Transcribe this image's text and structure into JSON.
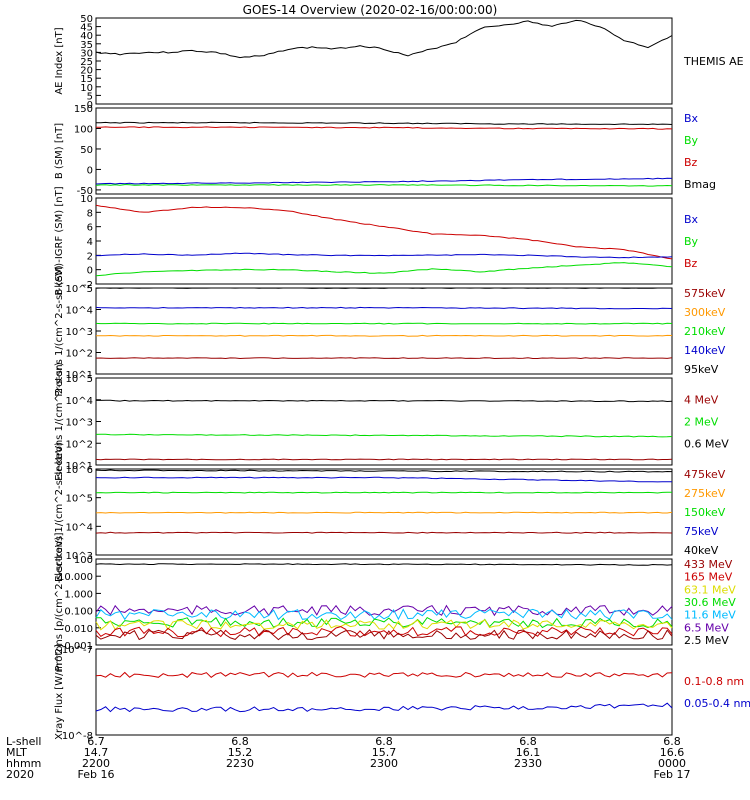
{
  "title": "GOES-14 Overview (2020-02-16/00:00:00)",
  "colors": {
    "black": "#000000",
    "blue": "#0000cc",
    "green": "#00dd00",
    "red": "#cc0000",
    "orange": "#ff9900",
    "cyan": "#00bbff",
    "purple": "#6600aa",
    "yellow": "#dddd00",
    "darkred": "#990000"
  },
  "chart_data": [
    {
      "type": "line",
      "ylabel": "AE Index [nT]",
      "ylim": [
        0,
        50
      ],
      "yticks": [
        "0",
        "5",
        "10",
        "15",
        "20",
        "25",
        "30",
        "35",
        "40",
        "45",
        "50"
      ],
      "x": [
        0,
        5,
        10,
        15,
        20,
        25,
        30,
        35,
        40,
        45,
        50,
        55,
        60,
        65,
        70,
        75,
        80,
        85,
        90,
        95,
        100,
        105,
        110,
        115,
        120
      ],
      "series": [
        {
          "name": "THEMIS AE",
          "color": "black",
          "values": [
            30,
            29,
            30,
            30,
            31,
            30,
            27,
            28,
            32,
            33,
            32,
            34,
            32,
            28,
            32,
            36,
            44,
            46,
            48,
            45,
            49,
            45,
            37,
            33,
            40
          ]
        }
      ],
      "legend": [
        {
          "text": "THEMIS AE",
          "color": "black"
        }
      ]
    },
    {
      "type": "line",
      "ylabel": "B (SM) [nT]",
      "ylim": [
        -60,
        150
      ],
      "yticks": [
        "150",
        "100",
        "50",
        "0",
        "-50"
      ],
      "x": [
        0,
        30,
        60,
        90,
        120
      ],
      "series": [
        {
          "name": "Bmag",
          "color": "black",
          "values": [
            114,
            114,
            113,
            111,
            110
          ]
        },
        {
          "name": "Bz",
          "color": "red",
          "values": [
            103,
            103,
            102,
            100,
            99
          ]
        },
        {
          "name": "Bx",
          "color": "blue",
          "values": [
            -35,
            -33,
            -30,
            -25,
            -22
          ]
        },
        {
          "name": "By",
          "color": "green",
          "values": [
            -38,
            -38,
            -38,
            -39,
            -40
          ]
        }
      ],
      "legend": [
        {
          "text": "Bx",
          "color": "blue"
        },
        {
          "text": "By",
          "color": "green"
        },
        {
          "text": "Bz",
          "color": "red"
        },
        {
          "text": "Bmag",
          "color": "black"
        }
      ]
    },
    {
      "type": "line",
      "ylabel": "B (SM)-IGRF (SM) [nT]",
      "ylim": [
        -2,
        10
      ],
      "yticks": [
        "10",
        "8",
        "6",
        "4",
        "2",
        "0",
        "-2"
      ],
      "x": [
        0,
        10,
        20,
        30,
        40,
        50,
        60,
        70,
        80,
        90,
        100,
        110,
        120
      ],
      "series": [
        {
          "name": "Bz",
          "color": "red",
          "values": [
            9,
            8,
            8.7,
            8.7,
            8.2,
            7,
            6,
            5,
            4.8,
            4.2,
            3.2,
            2.8,
            1.5
          ]
        },
        {
          "name": "Bx",
          "color": "blue",
          "values": [
            2,
            2.2,
            2,
            2.3,
            2.1,
            2,
            2,
            2,
            2.1,
            2,
            1.8,
            1.7,
            1.8
          ]
        },
        {
          "name": "By",
          "color": "green",
          "values": [
            -0.8,
            -0.3,
            -0.1,
            0,
            0,
            -0.3,
            -0.5,
            0.1,
            -0.3,
            0.2,
            0.6,
            1,
            0.4
          ]
        }
      ],
      "legend": [
        {
          "text": "Bx",
          "color": "blue"
        },
        {
          "text": "By",
          "color": "green"
        },
        {
          "text": "Bz",
          "color": "red"
        }
      ]
    },
    {
      "type": "line",
      "ylabel": "Protons 1/(cm^2-s-sr-keV)",
      "log": true,
      "ylim": [
        1,
        5
      ],
      "yticks": [
        "10^1",
        "10^2",
        "10^3",
        "10^4",
        "10^5"
      ],
      "x": [
        0,
        60,
        120
      ],
      "series": [
        {
          "name": "95keV",
          "color": "black",
          "values": [
            100000,
            100000,
            100000
          ]
        },
        {
          "name": "140keV",
          "color": "blue",
          "values": [
            12000,
            12000,
            11000
          ]
        },
        {
          "name": "210keV",
          "color": "green",
          "values": [
            2200,
            2200,
            2200
          ]
        },
        {
          "name": "300keV",
          "color": "orange",
          "values": [
            600,
            600,
            600
          ]
        },
        {
          "name": "575keV",
          "color": "darkred",
          "values": [
            55,
            55,
            55
          ]
        }
      ],
      "legend": [
        {
          "text": "575keV",
          "color": "darkred"
        },
        {
          "text": "300keV",
          "color": "orange"
        },
        {
          "text": "210keV",
          "color": "green"
        },
        {
          "text": "140keV",
          "color": "blue"
        },
        {
          "text": "95keV",
          "color": "black"
        }
      ]
    },
    {
      "type": "line",
      "ylabel": "Electrons 1/(cm^2-s-sr)",
      "log": true,
      "ylim": [
        1,
        5
      ],
      "yticks": [
        "10^1",
        "10^2",
        "10^3",
        "10^4",
        "10^5"
      ],
      "x": [
        0,
        60,
        120
      ],
      "series": [
        {
          "name": "0.6 MeV",
          "color": "black",
          "values": [
            9000,
            9000,
            8500
          ]
        },
        {
          "name": "2 MeV",
          "color": "green",
          "values": [
            250,
            230,
            200
          ]
        },
        {
          "name": "4 MeV",
          "color": "darkred",
          "values": [
            18,
            18,
            18
          ]
        }
      ],
      "legend": [
        {
          "text": "4 MeV",
          "color": "darkred"
        },
        {
          "text": "2 MeV",
          "color": "green"
        },
        {
          "text": "0.6 MeV",
          "color": "black"
        }
      ]
    },
    {
      "type": "line",
      "ylabel": "Electrons 1/(cm^2-s-sr-keV)",
      "log": true,
      "ylim": [
        3,
        6
      ],
      "yticks": [
        "10^3",
        "10^4",
        "10^5",
        "10^6"
      ],
      "x": [
        0,
        60,
        120
      ],
      "series": [
        {
          "name": "40keV",
          "color": "black",
          "values": [
            900000,
            850000,
            800000
          ]
        },
        {
          "name": "75keV",
          "color": "blue",
          "values": [
            500000,
            500000,
            350000
          ]
        },
        {
          "name": "150keV",
          "color": "green",
          "values": [
            150000,
            150000,
            150000
          ]
        },
        {
          "name": "275keV",
          "color": "orange",
          "values": [
            30000,
            30000,
            30000
          ]
        },
        {
          "name": "475keV",
          "color": "darkred",
          "values": [
            6000,
            6000,
            6000
          ]
        }
      ],
      "legend": [
        {
          "text": "475keV",
          "color": "darkred"
        },
        {
          "text": "275keV",
          "color": "orange"
        },
        {
          "text": "150keV",
          "color": "green"
        },
        {
          "text": "75keV",
          "color": "blue"
        },
        {
          "text": "40keV",
          "color": "black"
        }
      ]
    },
    {
      "type": "line",
      "ylabel": "Protons [p/(cm^2-s-sr-keV)]",
      "log": true,
      "ylim": [
        -3,
        2
      ],
      "yticks": [
        "100",
        "10.000",
        "1.000",
        "0.100",
        "0.010",
        "0.001"
      ],
      "x": [
        0,
        60,
        120
      ],
      "series": [
        {
          "name": "2.5 MeV",
          "color": "black",
          "values": [
            50,
            50,
            45
          ]
        },
        {
          "name": "6.5 MeV",
          "color": "purple",
          "values": [
            0.1,
            0.1,
            0.1
          ]
        },
        {
          "name": "11.6 MeV",
          "color": "cyan",
          "values": [
            0.06,
            0.06,
            0.06
          ]
        },
        {
          "name": "30.6 MeV",
          "color": "green",
          "values": [
            0.02,
            0.02,
            0.02
          ]
        },
        {
          "name": "63.1 MeV",
          "color": "yellow",
          "values": [
            0.015,
            0.015,
            0.015
          ]
        },
        {
          "name": "165 MeV",
          "color": "red",
          "values": [
            0.006,
            0.006,
            0.006
          ]
        },
        {
          "name": "433 MeV",
          "color": "darkred",
          "values": [
            0.004,
            0.004,
            0.004
          ]
        }
      ],
      "legend": [
        {
          "text": "433 MeV",
          "color": "darkred"
        },
        {
          "text": "165 MeV",
          "color": "red"
        },
        {
          "text": "63.1 MeV",
          "color": "yellow"
        },
        {
          "text": "30.6 MeV",
          "color": "green"
        },
        {
          "text": "11.6 MeV",
          "color": "cyan"
        },
        {
          "text": "6.5 MeV",
          "color": "purple"
        },
        {
          "text": "2.5 MeV",
          "color": "black"
        }
      ]
    },
    {
      "type": "line",
      "ylabel": "Xray Flux [W/m^2]",
      "log": true,
      "ylim": [
        -8,
        -7
      ],
      "yticks": [
        "10^-7",
        "10^-8"
      ],
      "x": [
        0,
        60,
        120
      ],
      "series": [
        {
          "name": "0.1-0.8 nm",
          "color": "red",
          "values": [
            5e-08,
            5e-08,
            5e-08
          ]
        },
        {
          "name": "0.05-0.4 nm",
          "color": "blue",
          "values": [
            2e-08,
            2e-08,
            2.2e-08
          ]
        }
      ],
      "legend": [
        {
          "text": "0.1-0.8 nm",
          "color": "red"
        },
        {
          "text": "0.05-0.4 nm",
          "color": "blue"
        }
      ]
    }
  ],
  "xaxis": {
    "row_labels": [
      "L-shell",
      "MLT",
      "hhmm",
      "2020"
    ],
    "columns": [
      {
        "lshell": "6.7",
        "mlt": "14.7",
        "hhmm": "2200",
        "date": "Feb 16"
      },
      {
        "lshell": "6.8",
        "mlt": "15.2",
        "hhmm": "2230",
        "date": ""
      },
      {
        "lshell": "6.8",
        "mlt": "15.7",
        "hhmm": "2300",
        "date": ""
      },
      {
        "lshell": "6.8",
        "mlt": "16.1",
        "hhmm": "2330",
        "date": ""
      },
      {
        "lshell": "6.8",
        "mlt": "16.6",
        "hhmm": "0000",
        "date": "Feb 17"
      }
    ]
  }
}
